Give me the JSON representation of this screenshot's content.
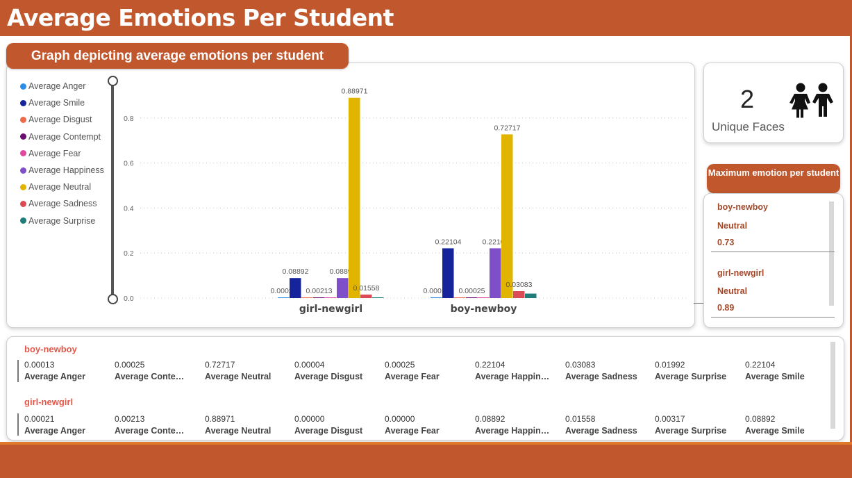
{
  "header": {
    "title": "Average Emotions Per Student"
  },
  "chart_section": {
    "title": "Graph depicting average emotions per student"
  },
  "colors": {
    "accent": "#c0572d"
  },
  "chart_data": {
    "type": "bar",
    "categories": [
      "girl-newgirl",
      "boy-newboy"
    ],
    "series": [
      {
        "name": "Average Anger",
        "color": "#2b8fe8",
        "values": [
          0.00021,
          0.00013
        ]
      },
      {
        "name": "Average Smile",
        "color": "#16249c",
        "values": [
          0.08892,
          0.22104
        ]
      },
      {
        "name": "Average Disgust",
        "color": "#ef6c4a",
        "values": [
          0.0,
          4e-05
        ]
      },
      {
        "name": "Average Contempt",
        "color": "#6b0f72",
        "values": [
          0.00213,
          0.00025
        ]
      },
      {
        "name": "Average Fear",
        "color": "#e0479e",
        "values": [
          0.0,
          0.00025
        ]
      },
      {
        "name": "Average Happiness",
        "color": "#7f4fc9",
        "values": [
          0.08892,
          0.22104
        ]
      },
      {
        "name": "Average Neutral",
        "color": "#e1b400",
        "values": [
          0.88971,
          0.72717
        ]
      },
      {
        "name": "Average Sadness",
        "color": "#dc4a55",
        "values": [
          0.01558,
          0.03083
        ]
      },
      {
        "name": "Average Surprise",
        "color": "#1e7d78",
        "values": [
          0.00317,
          0.01992
        ]
      }
    ],
    "data_labels": [
      {
        "category": "girl-newgirl",
        "series": "Average Anger",
        "text": "0.00021"
      },
      {
        "category": "girl-newgirl",
        "series": "Average Smile",
        "text": "0.08892"
      },
      {
        "category": "girl-newgirl",
        "series": "Average Contempt",
        "text": "0.00213"
      },
      {
        "category": "girl-newgirl",
        "series": "Average Happiness",
        "text": "0.08892"
      },
      {
        "category": "girl-newgirl",
        "series": "Average Neutral",
        "text": "0.88971"
      },
      {
        "category": "girl-newgirl",
        "series": "Average Sadness",
        "text": "0.01558"
      },
      {
        "category": "boy-newboy",
        "series": "Average Anger",
        "text": "0.00013"
      },
      {
        "category": "boy-newboy",
        "series": "Average Smile",
        "text": "0.22104"
      },
      {
        "category": "boy-newboy",
        "series": "Average Contempt",
        "text": "0.00025"
      },
      {
        "category": "boy-newboy",
        "series": "Average Happiness",
        "text": "0.22104"
      },
      {
        "category": "boy-newboy",
        "series": "Average Neutral",
        "text": "0.72717"
      },
      {
        "category": "boy-newboy",
        "series": "Average Sadness",
        "text": "0.03083"
      }
    ],
    "y_ticks": [
      "0.0",
      "0.2",
      "0.4",
      "0.6",
      "0.8"
    ],
    "ylim": [
      0,
      0.9
    ],
    "grid": true,
    "legend_position": "left"
  },
  "kpi": {
    "value": "2",
    "label": "Unique Faces",
    "icon": "children-icon"
  },
  "max_emotion": {
    "title": "Maximum emotion per student",
    "entries": [
      {
        "student": "boy-newboy",
        "emotion": "Neutral",
        "value": "0.73"
      },
      {
        "student": "girl-newgirl",
        "emotion": "Neutral",
        "value": "0.89"
      }
    ]
  },
  "table": {
    "groups": [
      {
        "student": "boy-newboy",
        "cells": [
          {
            "value": "0.00013",
            "label": "Average Anger"
          },
          {
            "value": "0.00025",
            "label": "Average Conte…"
          },
          {
            "value": "0.72717",
            "label": "Average Neutral"
          },
          {
            "value": "0.00004",
            "label": "Average Disgust"
          },
          {
            "value": "0.00025",
            "label": "Average Fear"
          },
          {
            "value": "0.22104",
            "label": "Average Happin…"
          },
          {
            "value": "0.03083",
            "label": "Average Sadness"
          },
          {
            "value": "0.01992",
            "label": "Average Surprise"
          },
          {
            "value": "0.22104",
            "label": "Average Smile"
          }
        ]
      },
      {
        "student": "girl-newgirl",
        "cells": [
          {
            "value": "0.00021",
            "label": "Average Anger"
          },
          {
            "value": "0.00213",
            "label": "Average Conte…"
          },
          {
            "value": "0.88971",
            "label": "Average Neutral"
          },
          {
            "value": "0.00000",
            "label": "Average Disgust"
          },
          {
            "value": "0.00000",
            "label": "Average Fear"
          },
          {
            "value": "0.08892",
            "label": "Average Happin…"
          },
          {
            "value": "0.01558",
            "label": "Average Sadness"
          },
          {
            "value": "0.00317",
            "label": "Average Surprise"
          },
          {
            "value": "0.08892",
            "label": "Average Smile"
          }
        ]
      }
    ]
  }
}
